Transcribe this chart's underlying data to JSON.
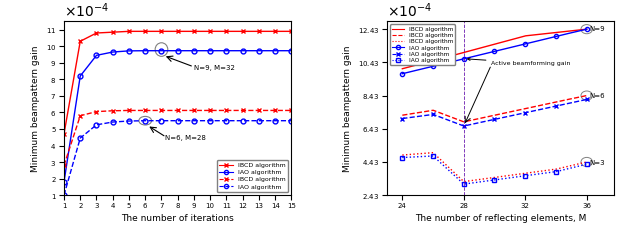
{
  "left_iters": [
    1,
    2,
    3,
    4,
    5,
    6,
    7,
    8,
    9,
    10,
    11,
    12,
    13,
    14,
    15
  ],
  "left_ibcd_N9": [
    4.7,
    10.3,
    10.8,
    10.85,
    10.9,
    10.9,
    10.9,
    10.9,
    10.9,
    10.9,
    10.9,
    10.9,
    10.9,
    10.9,
    10.9
  ],
  "left_iao_N9": [
    1.8,
    8.2,
    9.45,
    9.65,
    9.72,
    9.73,
    9.73,
    9.73,
    9.73,
    9.73,
    9.73,
    9.73,
    9.73,
    9.73,
    9.73
  ],
  "left_ibcd_N6": [
    2.8,
    5.8,
    6.05,
    6.1,
    6.12,
    6.12,
    6.12,
    6.12,
    6.12,
    6.12,
    6.12,
    6.12,
    6.12,
    6.12,
    6.12
  ],
  "left_iao_N6": [
    1.0,
    4.45,
    5.25,
    5.42,
    5.48,
    5.5,
    5.5,
    5.5,
    5.5,
    5.5,
    5.5,
    5.5,
    5.5,
    5.5,
    5.5
  ],
  "left_yticks": [
    1,
    2,
    3,
    4,
    5,
    6,
    7,
    8,
    9,
    10,
    11
  ],
  "left_ylim": [
    1.0,
    11.5
  ],
  "left_xlabel": "The number of iterations",
  "left_ylabel": "Minimum beampattern gain",
  "right_M_key": [
    24,
    26,
    28,
    30,
    32,
    34,
    36
  ],
  "right_ibcd_N9": [
    10.05,
    10.53,
    11.03,
    11.53,
    12.03,
    12.23,
    12.4337
  ],
  "right_iao_N9": [
    9.75,
    10.2,
    10.65,
    11.1,
    11.55,
    12.0,
    12.4337
  ],
  "right_ibcd_N6": [
    7.25,
    7.55,
    6.85,
    7.25,
    7.65,
    8.05,
    8.4337
  ],
  "right_iao_N6": [
    7.05,
    7.3,
    6.6,
    7.0,
    7.4,
    7.8,
    8.2
  ],
  "right_ibcd_N3": [
    4.85,
    5.0,
    3.25,
    3.5,
    3.75,
    4.0,
    4.4337
  ],
  "right_iao_N3": [
    4.7,
    4.8,
    3.1,
    3.35,
    3.6,
    3.85,
    4.3
  ],
  "right_yticks": [
    2.4337,
    4.4337,
    6.4337,
    8.4337,
    10.4337,
    12.4337
  ],
  "right_ylim": [
    2.4337,
    12.9
  ],
  "right_xlim": [
    23,
    37.8
  ],
  "right_xticks": [
    24,
    28,
    32,
    36
  ],
  "right_xlabel": "The number of reflecting elements, M",
  "right_ylabel": "Minimum beampattern gain",
  "red": "#FF0000",
  "blue": "#0000FF",
  "scale": 0.0001
}
